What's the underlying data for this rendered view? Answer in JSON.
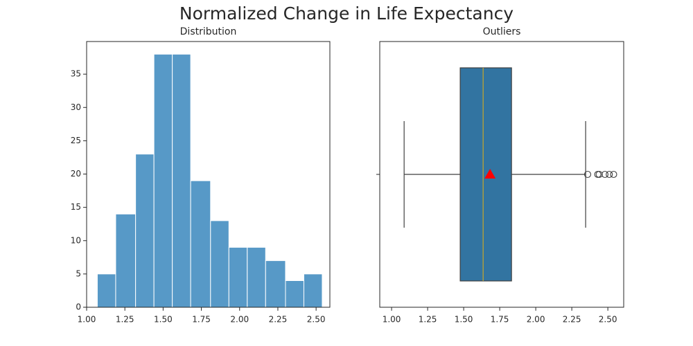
{
  "title": "Normalized Change in Life Expectancy",
  "chart_data": [
    {
      "type": "histogram",
      "title": "Distribution",
      "bins": [
        1.07,
        1.19,
        1.32,
        1.44,
        1.56,
        1.68,
        1.81,
        1.93,
        2.05,
        2.17,
        2.3,
        2.42,
        2.54
      ],
      "values": [
        5,
        14,
        23,
        38,
        38,
        19,
        13,
        9,
        9,
        7,
        4,
        5
      ],
      "color": "#5799c7",
      "xlim": [
        1.0,
        2.59
      ],
      "ylim": [
        0,
        39.9
      ],
      "xticks": [
        {
          "value": 1,
          "label": "1.00"
        },
        {
          "value": 1.25,
          "label": "1.25"
        },
        {
          "value": 1.5,
          "label": "1.50"
        },
        {
          "value": 1.75,
          "label": "1.75"
        },
        {
          "value": 2,
          "label": "2.00"
        },
        {
          "value": 2.25,
          "label": "2.25"
        },
        {
          "value": 2.5,
          "label": "2.50"
        }
      ],
      "yticks": [
        0,
        5,
        10,
        15,
        20,
        25,
        30,
        35
      ]
    },
    {
      "type": "box",
      "title": "Outliers",
      "categories": [
        null
      ],
      "whislo": 1.087,
      "q1": 1.476,
      "med": 1.635,
      "q3": 1.832,
      "whishi": 2.346,
      "mean": 1.683,
      "fliers": [
        2.36,
        2.43,
        2.44,
        2.48,
        2.51,
        2.54
      ],
      "color": "#3274a1",
      "median_color": "#c8a82a",
      "mean_color": "#ff0000",
      "xlim": [
        0.918,
        2.61
      ],
      "xticks": [
        {
          "value": 1,
          "label": "1.00"
        },
        {
          "value": 1.25,
          "label": "1.25"
        },
        {
          "value": 1.5,
          "label": "1.50"
        },
        {
          "value": 1.75,
          "label": "1.75"
        },
        {
          "value": 2,
          "label": "2.00"
        },
        {
          "value": 2.25,
          "label": "2.25"
        },
        {
          "value": 2.5,
          "label": "2.50"
        }
      ]
    }
  ]
}
